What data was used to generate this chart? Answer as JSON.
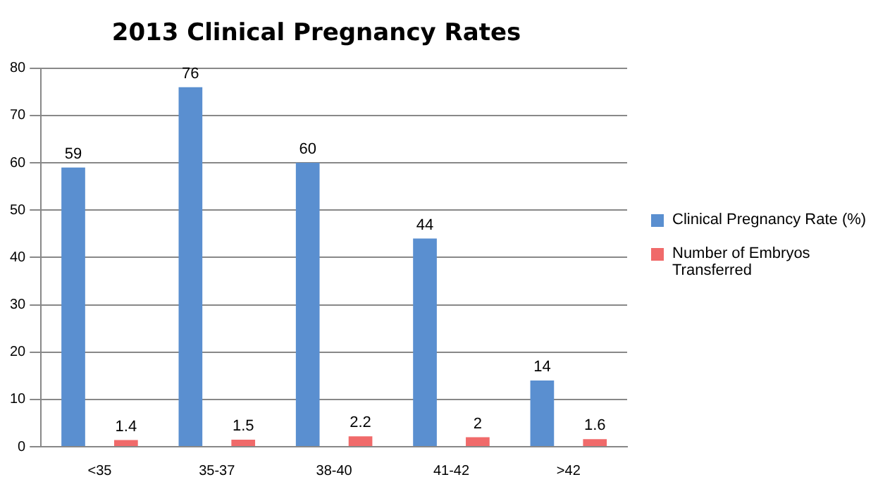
{
  "chart_data": {
    "type": "bar",
    "title": "2013 Clinical Pregnancy Rates",
    "categories": [
      "<35",
      "35-37",
      "38-40",
      "41-42",
      ">42"
    ],
    "series": [
      {
        "name": "Clinical Pregnancy Rate (%)",
        "color": "#5a8fd0",
        "values": [
          59,
          76,
          60,
          44,
          14
        ]
      },
      {
        "name": "Number of Embryos Transferred",
        "color": "#f06a6a",
        "values": [
          1.4,
          1.5,
          2.2,
          2,
          1.6
        ]
      }
    ],
    "ylim": [
      0,
      80
    ],
    "yticks": [
      0,
      10,
      20,
      30,
      40,
      50,
      60,
      70,
      80
    ],
    "grid": "y",
    "legend": "right",
    "data_labels": true
  }
}
